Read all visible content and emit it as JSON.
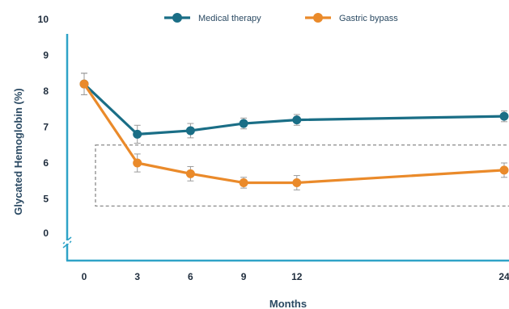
{
  "chart_data": {
    "type": "line",
    "title": "",
    "xlabel": "Months",
    "ylabel": "Glycated Hemoglobin (%)",
    "x": [
      0,
      3,
      6,
      9,
      12,
      24
    ],
    "x_tick_labels": [
      "0",
      "3",
      "6",
      "9",
      "12",
      "24"
    ],
    "y_tick_labels": [
      "10",
      "9",
      "8",
      "7",
      "6",
      "5",
      "0"
    ],
    "ylim": [
      4,
      10
    ],
    "y_axis_break": true,
    "grid": false,
    "legend_position": "top",
    "series": [
      {
        "name": "Medical therapy",
        "color": "#1a6e86",
        "values": [
          8.2,
          6.8,
          6.9,
          7.1,
          7.2,
          7.3
        ],
        "error": [
          0.3,
          0.25,
          0.2,
          0.15,
          0.15,
          0.15
        ]
      },
      {
        "name": "Gastric bypass",
        "color": "#ea8a2a",
        "values": [
          8.2,
          6.0,
          5.7,
          5.45,
          5.45,
          5.8
        ],
        "error": [
          0.3,
          0.25,
          0.2,
          0.15,
          0.2,
          0.2
        ]
      }
    ],
    "reference_box": {
      "y_range": [
        4.8,
        6.5
      ],
      "style": "dashed",
      "color": "#8a8a8a"
    },
    "axis_color": "#2fa3c7"
  }
}
